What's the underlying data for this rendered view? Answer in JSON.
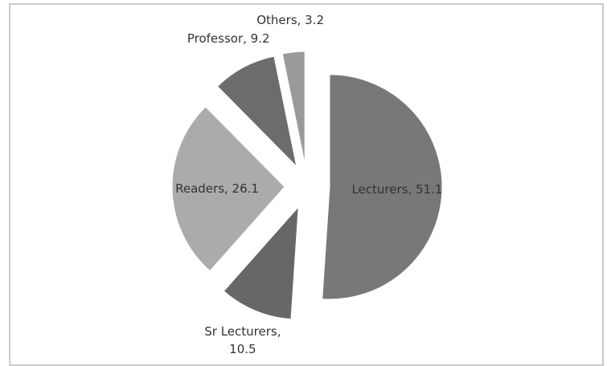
{
  "chart_data": {
    "type": "pie",
    "labels": [
      "Lecturers, 51.1",
      "Sr Lecturers, 10.5",
      "Readers, 26.1",
      "Professor, 9.2",
      "Others, 3.2"
    ],
    "values": [
      51.1,
      10.5,
      26.1,
      9.2,
      3.2
    ],
    "colors": [
      "#787878",
      "#676767",
      "#ababab",
      "#6c6c6c",
      "#9a9a9a"
    ]
  }
}
